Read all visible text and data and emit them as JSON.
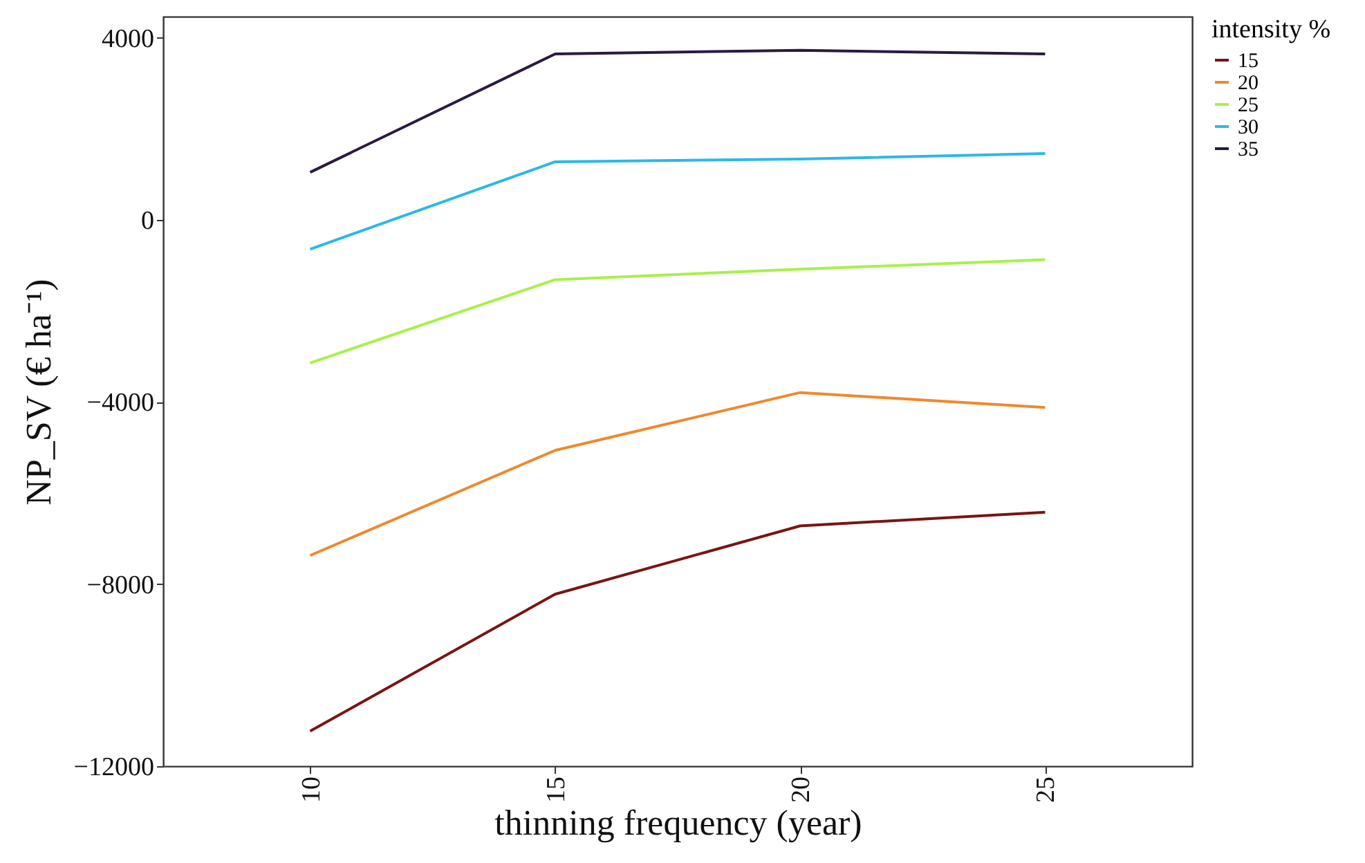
{
  "chart_data": {
    "type": "line",
    "xlabel": "thinning frequency (year)",
    "ylabel": "NP_SV (€ ha⁻¹)",
    "legend_title": "intensity %",
    "x": [
      10,
      15,
      20,
      25
    ],
    "series": [
      {
        "name": "15",
        "color": "#7a1414",
        "values": [
          -11230,
          -8220,
          -6720,
          -6420
        ]
      },
      {
        "name": "20",
        "color": "#f0882c",
        "values": [
          -7370,
          -5060,
          -3790,
          -4120
        ]
      },
      {
        "name": "25",
        "color": "#a8f04c",
        "values": [
          -3140,
          -1310,
          -1080,
          -870
        ]
      },
      {
        "name": "30",
        "color": "#2cb8e8",
        "values": [
          -640,
          1280,
          1340,
          1460
        ]
      },
      {
        "name": "35",
        "color": "#2a1a40",
        "values": [
          1050,
          3650,
          3730,
          3650
        ]
      }
    ],
    "xlim": [
      7,
      28
    ],
    "ylim": [
      -12000,
      4470
    ],
    "xticks": [
      10,
      15,
      20,
      25
    ],
    "yticks": [
      -12000,
      -8000,
      -4000,
      0,
      4000
    ],
    "grid": false,
    "legend": "right",
    "marker": "none",
    "line_style": "solid"
  }
}
